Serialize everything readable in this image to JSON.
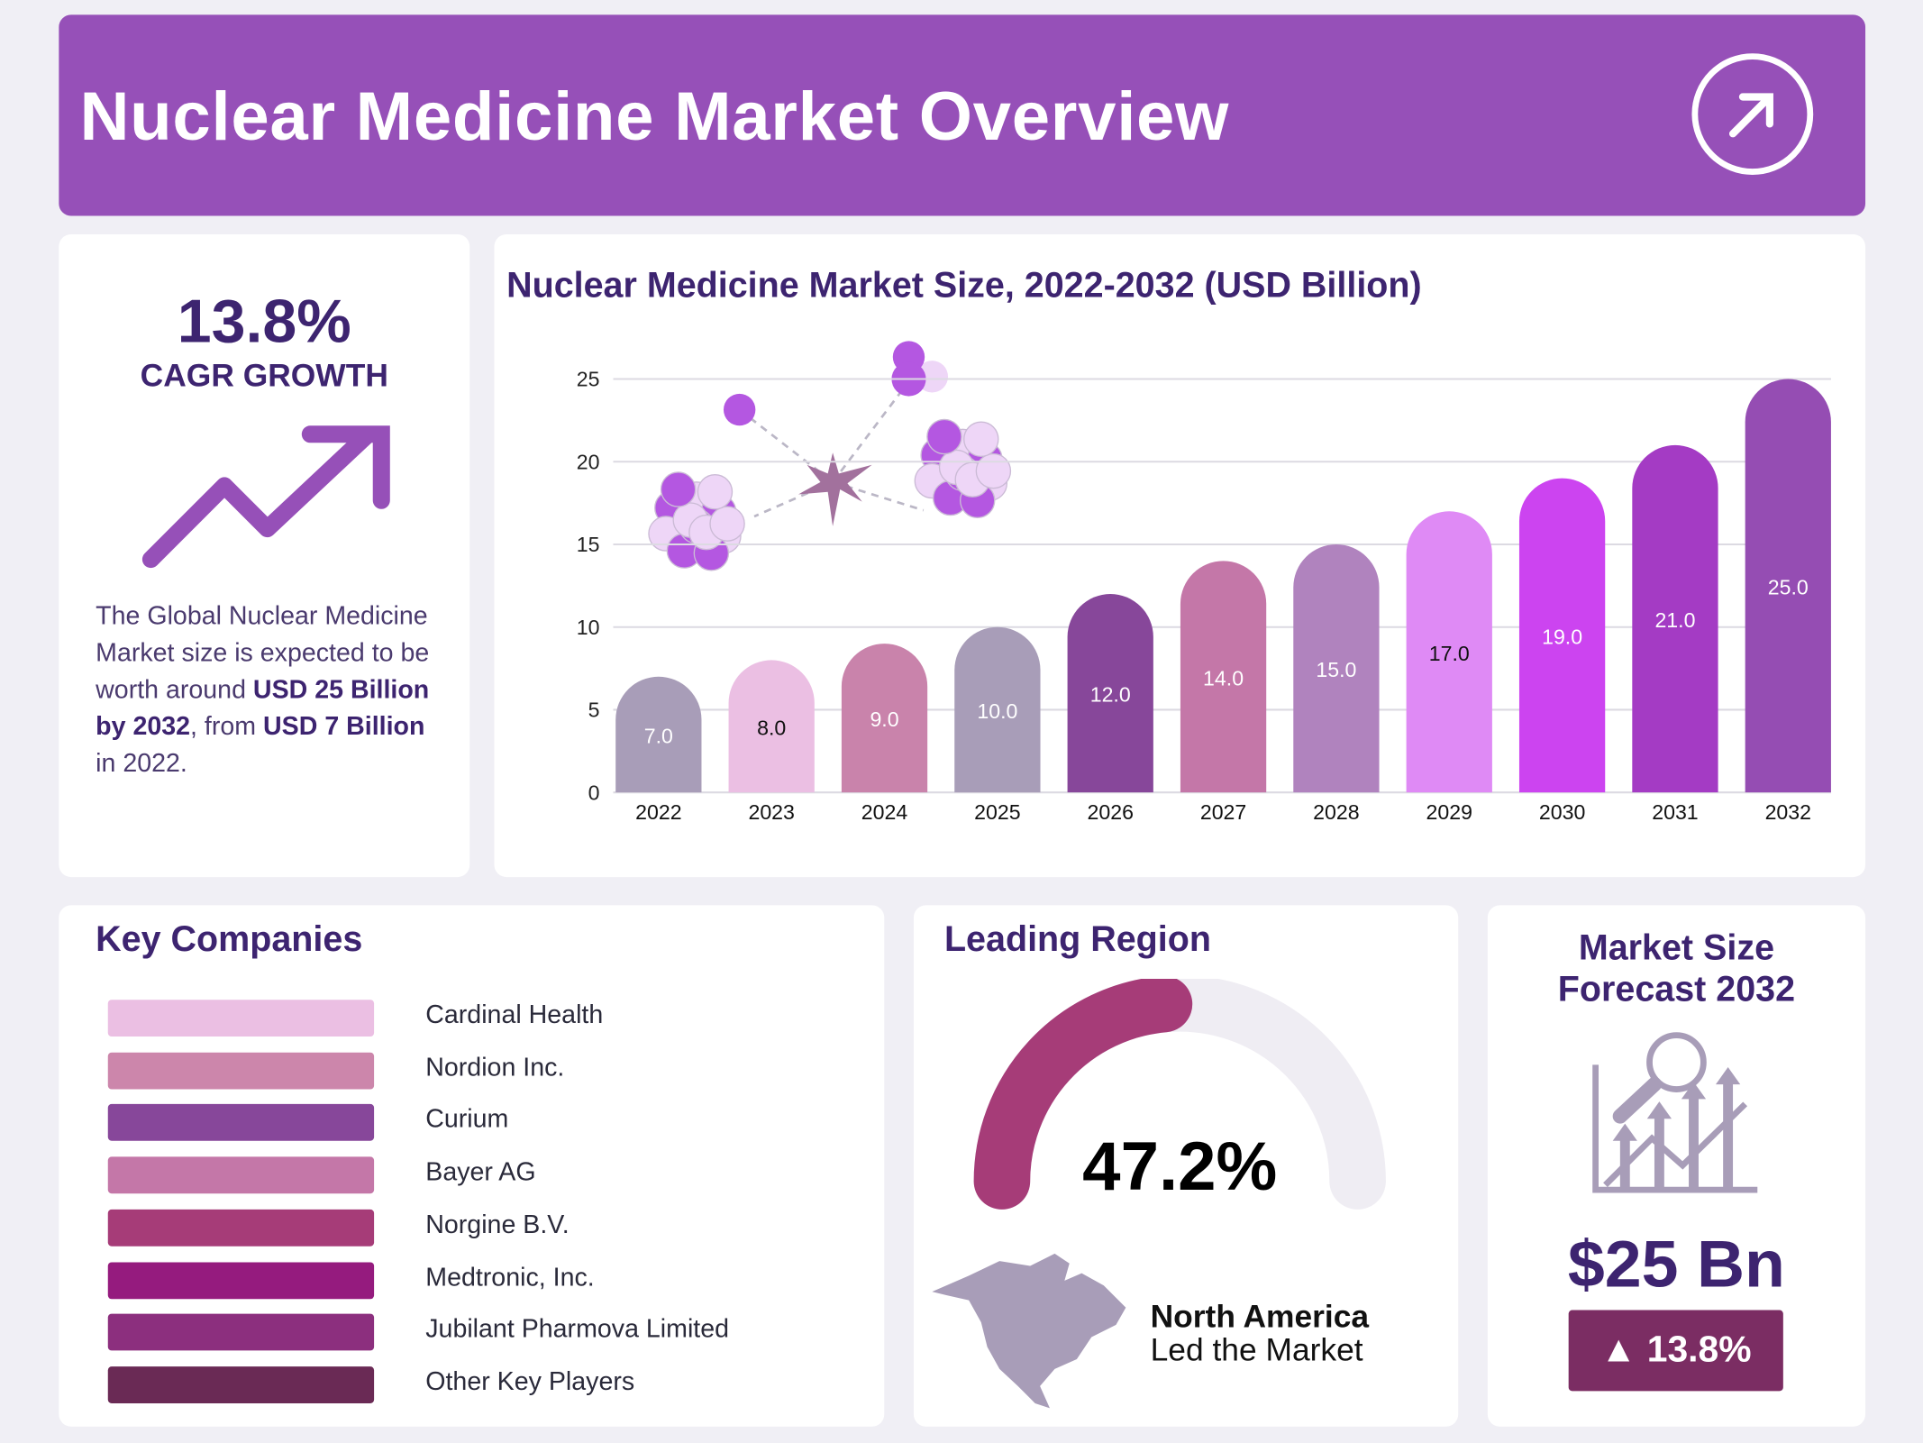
{
  "header": {
    "title": "Nuclear Medicine Market Overview",
    "icon": "arrow-up-right-circle-icon",
    "color": "#9650b8"
  },
  "cagr": {
    "value": "13.8%",
    "label": "CAGR GROWTH",
    "icon": "trend-up-arrow-icon",
    "text": {
      "p1": "The Global Nuclear Medicine Market size is expected to be worth around ",
      "b1": "USD  25 Billion by 2032",
      "p2": ", from ",
      "b2": "USD 7 Billion",
      "p3": " in 2022."
    }
  },
  "chart_data": {
    "type": "bar",
    "title": "Nuclear Medicine Market Size, 2022-2032 (USD Billion)",
    "categories": [
      "2022",
      "2023",
      "2024",
      "2025",
      "2026",
      "2027",
      "2028",
      "2029",
      "2030",
      "2031",
      "2032"
    ],
    "values": [
      7.0,
      8.0,
      9.0,
      10.0,
      12.0,
      14.0,
      15.0,
      17.0,
      19.0,
      21.0,
      25.0
    ],
    "colors": [
      "#a89db8",
      "#ebbfe3",
      "#c983ab",
      "#a89db8",
      "#87479a",
      "#c477a8",
      "#b083be",
      "#df8af5",
      "#cc44f0",
      "#a43bc4",
      "#954db3"
    ],
    "ylim": [
      0,
      25
    ],
    "yticks": [
      0,
      5,
      10,
      15,
      20,
      25
    ],
    "grid": true,
    "xlabel": "",
    "ylabel": ""
  },
  "companies": {
    "title": "Key Companies",
    "items": [
      {
        "name": "Cardinal Health",
        "color": "#ebbfe3"
      },
      {
        "name": "Nordion Inc.",
        "color": "#cc86ab"
      },
      {
        "name": "Curium",
        "color": "#87479a"
      },
      {
        "name": "Bayer AG",
        "color": "#c477a8"
      },
      {
        "name": "Norgine B.V.",
        "color": "#a63c78"
      },
      {
        "name": "Medtronic, Inc.",
        "color": "#951b7e"
      },
      {
        "name": "Jubilant Pharmova Limited",
        "color": "#8c2f7e"
      },
      {
        "name": "Other Key Players",
        "color": "#6a2a55"
      }
    ]
  },
  "region": {
    "title": "Leading Region",
    "share": "47.2%",
    "share_fraction": 0.472,
    "name": "North America",
    "sub": "Led the Market",
    "gauge_color": "#a63c78",
    "icon": "north-america-map-icon"
  },
  "forecast": {
    "title_line1": "Market Size",
    "title_line2": "Forecast 2032",
    "value": "$25 Bn",
    "growth": "13.8%",
    "icon": "chart-magnifier-icon",
    "badge_color": "#7b2d63"
  }
}
